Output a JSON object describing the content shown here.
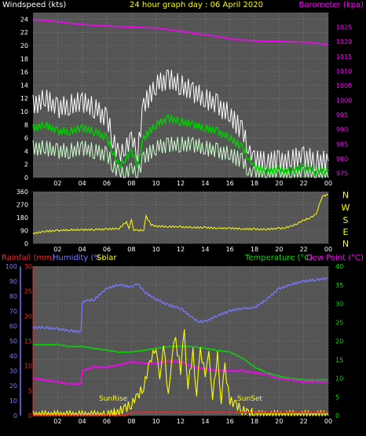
{
  "title": "24 hour graph day : 06 April 2020",
  "colors": {
    "background": "#000000",
    "wind_avg": "#00cc00",
    "wind_gust": "#ffffff",
    "wind_lull": "#ccffcc",
    "barometer": "#ff00ff",
    "direction": "#ffff00",
    "rainfall": "#ff2020",
    "humidity": "#7777ff",
    "solar": "#ffff00",
    "temperature": "#00dd00",
    "dewpoint": "#ff00ff",
    "axis_text": "#ffffff"
  },
  "chart_data": [
    {
      "type": "line",
      "id": "wind-baro",
      "title": "24 hour graph day : 06 April 2020",
      "left_label": "Windspeed (kts)",
      "right_label": "Barometer (kpa)",
      "x_ticks": [
        "02",
        "04",
        "06",
        "08",
        "10",
        "12",
        "14",
        "16",
        "18",
        "20",
        "22",
        "00"
      ],
      "x_range_hours": [
        0,
        24
      ],
      "y_left_ticks": [
        0,
        2,
        4,
        6,
        8,
        10,
        12,
        14,
        16,
        18,
        20,
        22,
        24
      ],
      "y_left_range": [
        0,
        25
      ],
      "y_right_ticks": [
        975,
        980,
        985,
        990,
        995,
        1000,
        1005,
        1010,
        1015,
        1020,
        1025
      ],
      "y_right_range": [
        973.5,
        1030
      ],
      "grid": true,
      "series": [
        {
          "name": "Barometer",
          "axis": "right",
          "x": [
            0,
            1,
            2,
            3,
            4,
            5,
            6,
            7,
            8,
            9,
            10,
            11,
            12,
            13,
            14,
            15,
            16,
            17,
            18,
            19,
            20,
            21,
            22,
            23,
            24
          ],
          "values": [
            1027.5,
            1027.3,
            1026.9,
            1026.4,
            1025.9,
            1025.6,
            1025.4,
            1025.2,
            1025.0,
            1024.9,
            1024.7,
            1024.2,
            1023.6,
            1023.0,
            1022.4,
            1021.8,
            1021.1,
            1020.6,
            1020.3,
            1020.2,
            1020.1,
            1020.0,
            1019.8,
            1019.5,
            1019.0
          ]
        },
        {
          "name": "Average",
          "axis": "left",
          "x": [
            0,
            1,
            2,
            3,
            4,
            5,
            6,
            6.5,
            7,
            7.5,
            8,
            8.5,
            9,
            10,
            11,
            12,
            13,
            14,
            15,
            16,
            17,
            17.5,
            18,
            19,
            20,
            21,
            22,
            23,
            24
          ],
          "values": [
            7.5,
            8,
            7,
            7,
            7.5,
            7,
            6,
            4,
            1.5,
            3,
            4,
            2,
            6,
            8,
            9,
            8.5,
            8,
            7.5,
            7,
            6,
            4.5,
            3,
            1.5,
            1,
            1.2,
            1,
            1.5,
            1,
            1
          ]
        },
        {
          "name": "Gust",
          "axis": "left",
          "x": [
            0,
            1,
            2,
            3,
            4,
            5,
            6,
            6.5,
            7,
            7.5,
            8,
            8.5,
            9,
            10,
            11,
            12,
            13,
            14,
            15,
            16,
            17,
            17.5,
            18,
            19,
            20,
            21,
            22,
            23,
            24
          ],
          "values": [
            11,
            12,
            10.5,
            11,
            11.5,
            10.5,
            9,
            6,
            3,
            5,
            6,
            4,
            11,
            14,
            15,
            14,
            13,
            12,
            11,
            9.5,
            7,
            4.5,
            2.5,
            2.5,
            2.5,
            2.8,
            3.2,
            2.5,
            2.5
          ]
        },
        {
          "name": "Lull",
          "axis": "left",
          "x": [
            0,
            1,
            2,
            3,
            4,
            5,
            6,
            6.5,
            7,
            7.5,
            8,
            8.5,
            9,
            10,
            11,
            12,
            13,
            14,
            15,
            16,
            17,
            17.5,
            18,
            19,
            20,
            21,
            22,
            23,
            24
          ],
          "values": [
            4.5,
            4.5,
            4,
            4,
            4.5,
            4,
            3.5,
            2,
            0.5,
            1,
            1.5,
            0.5,
            3,
            4.5,
            5,
            5,
            5,
            4.5,
            4,
            3.5,
            2.5,
            1,
            0.5,
            0,
            0,
            0,
            0.5,
            0,
            0
          ]
        }
      ]
    },
    {
      "type": "line",
      "id": "direction",
      "right_labels": [
        "N",
        "W",
        "S",
        "E",
        "N"
      ],
      "y_ticks": [
        0,
        90,
        180,
        270,
        360
      ],
      "y_range": [
        0,
        360
      ],
      "series": [
        {
          "name": "Direction",
          "x": [
            0,
            1,
            2,
            3,
            4,
            5,
            6,
            7,
            7.6,
            7.8,
            8,
            8.2,
            8.5,
            9,
            9.2,
            9.6,
            10,
            11,
            12,
            13,
            14,
            15,
            16,
            17,
            18,
            19,
            20,
            20.5,
            21,
            21.5,
            22,
            22.5,
            23,
            23.5,
            24
          ],
          "values": [
            70,
            85,
            90,
            95,
            95,
            98,
            100,
            105,
            150,
            110,
            165,
            95,
            90,
            95,
            190,
            130,
            120,
            118,
            115,
            112,
            110,
            108,
            105,
            102,
            100,
            100,
            105,
            110,
            120,
            140,
            160,
            180,
            200,
            330,
            340
          ]
        }
      ]
    },
    {
      "type": "line",
      "id": "climate",
      "left_labels": [
        "Rainfall (mm)",
        "Humidity (%)",
        "Solar"
      ],
      "right_labels": [
        "Temperature (°C)",
        "Dew Point (°C)"
      ],
      "annotations": [
        "SunRise",
        "SunSet"
      ],
      "sunrise_hour": 6.6,
      "sunset_hour": 17.8,
      "humidity_ticks": [
        0,
        10,
        20,
        30,
        40,
        50,
        60,
        70,
        80,
        90,
        100
      ],
      "rain_ticks": [
        0,
        5,
        10,
        15,
        20,
        25,
        30
      ],
      "temp_ticks": [
        0,
        5,
        10,
        15,
        20,
        25,
        30,
        35,
        40
      ],
      "humidity_range": [
        0,
        100
      ],
      "rain_range": [
        0,
        30
      ],
      "temp_range": [
        0,
        40
      ],
      "series": [
        {
          "name": "Humidity",
          "axis": "humidity",
          "x": [
            0,
            1,
            2,
            3,
            3.9,
            4,
            4.5,
            5,
            6,
            7,
            8,
            8.5,
            9,
            10,
            11,
            12,
            13,
            13.5,
            14,
            15,
            16,
            17,
            18,
            19,
            20,
            21,
            22,
            23,
            24
          ],
          "values": [
            59,
            59,
            58,
            57,
            56,
            76,
            77,
            78,
            85,
            88,
            86,
            89,
            83,
            78,
            74,
            72,
            65,
            63,
            63,
            67,
            70,
            72,
            72,
            78,
            85,
            88,
            90,
            91,
            92
          ]
        },
        {
          "name": "Temperature",
          "axis": "temp",
          "x": [
            0,
            1,
            2,
            3,
            4,
            5,
            6,
            7,
            8,
            9,
            10,
            11,
            12,
            13,
            14,
            15,
            16,
            17,
            18,
            19,
            20,
            21,
            22,
            23,
            24
          ],
          "values": [
            19,
            19,
            19,
            18.5,
            18.5,
            18,
            17.5,
            17,
            17,
            17.5,
            18,
            18.5,
            18.5,
            18.5,
            18,
            17.5,
            17,
            15.5,
            13,
            11.5,
            10.5,
            10,
            9.5,
            9.5,
            9.5
          ]
        },
        {
          "name": "Dew Point",
          "axis": "temp",
          "x": [
            0,
            1,
            2,
            3,
            3.9,
            4,
            5,
            6,
            7,
            8,
            9,
            10,
            11,
            12,
            13,
            14,
            15,
            16,
            17,
            18,
            19,
            20,
            21,
            22,
            23,
            24
          ],
          "values": [
            10,
            9.5,
            9,
            8.5,
            8.5,
            12,
            13,
            13,
            13.5,
            14.5,
            14,
            14,
            14.5,
            14.5,
            13,
            12.5,
            12,
            12,
            12,
            11.5,
            11,
            10,
            9.5,
            9,
            9,
            9
          ]
        },
        {
          "name": "Solar",
          "axis": "temp",
          "x": [
            0,
            6,
            6.6,
            7,
            7.5,
            8,
            8.5,
            9,
            9.5,
            10,
            10.3,
            10.6,
            11,
            11.3,
            11.6,
            12,
            12.3,
            12.6,
            13,
            13.3,
            13.6,
            14,
            14.3,
            14.6,
            15,
            15.3,
            15.6,
            16,
            16.5,
            17,
            17.5,
            18,
            24
          ],
          "values": [
            0,
            0,
            0.5,
            1,
            2,
            3,
            5,
            8,
            14,
            19,
            9,
            20,
            5,
            17,
            20,
            12,
            22,
            8,
            17,
            6,
            17,
            11,
            16,
            5,
            16,
            4,
            13,
            4,
            3,
            1.5,
            0.5,
            0,
            0
          ]
        },
        {
          "name": "Rainfall",
          "axis": "rain",
          "x": [
            0,
            7.5,
            8,
            24
          ],
          "values": [
            0,
            0,
            0.6,
            0.6
          ]
        }
      ]
    }
  ]
}
